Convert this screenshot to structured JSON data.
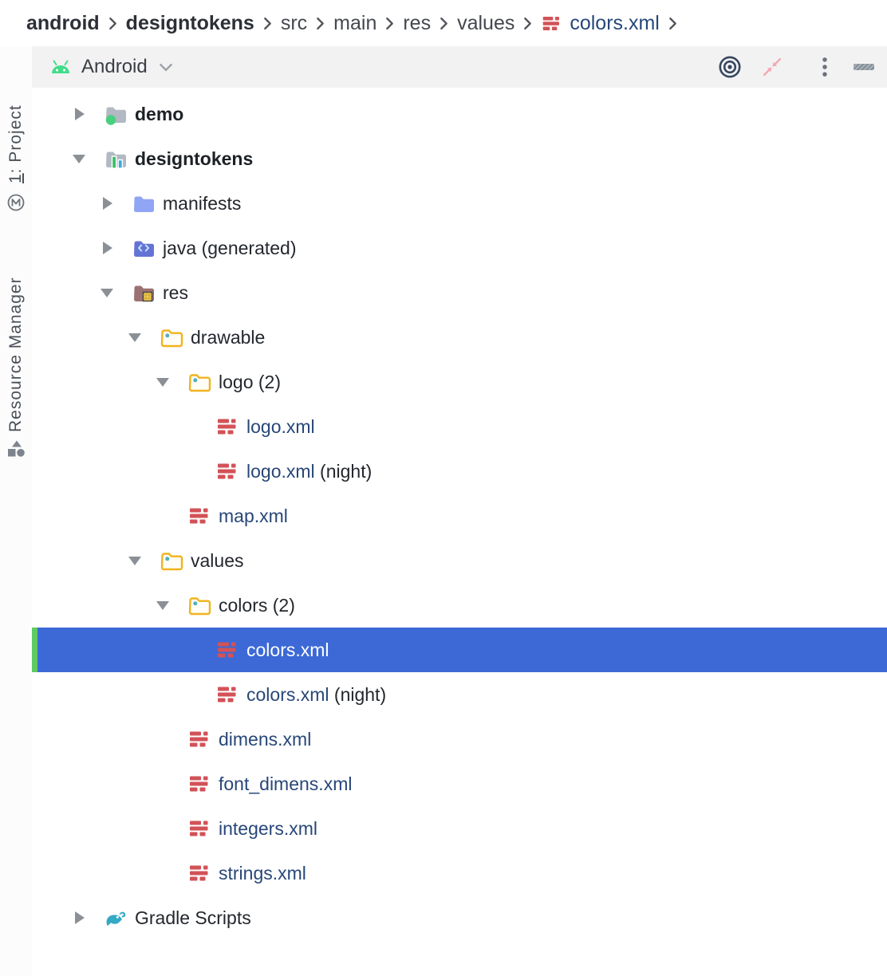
{
  "breadcrumb": {
    "items": [
      {
        "label": "android",
        "style": "bold"
      },
      {
        "label": "designtokens",
        "style": "bold"
      },
      {
        "label": "src",
        "style": "normal"
      },
      {
        "label": "main",
        "style": "normal"
      },
      {
        "label": "res",
        "style": "normal"
      },
      {
        "label": "values",
        "style": "normal"
      },
      {
        "label": "colors.xml",
        "style": "file",
        "icon": "xml-file"
      }
    ]
  },
  "left_stripe": {
    "project_button": {
      "mnemonic": "1",
      "label": ": Project"
    },
    "resource_manager_button": {
      "label": "Resource Manager"
    }
  },
  "toolbar": {
    "view_selector": {
      "label": "Android"
    },
    "actions": [
      {
        "name": "locate-file"
      },
      {
        "name": "collapse-all"
      },
      {
        "name": "more-options"
      },
      {
        "name": "hide-panel"
      }
    ]
  },
  "tree": {
    "items": [
      {
        "label": "demo",
        "level": 0,
        "arrow": "collapsed",
        "icon": "module-folder-dot",
        "bold": true
      },
      {
        "label": "designtokens",
        "level": 0,
        "arrow": "expanded",
        "icon": "module-folder-chart",
        "bold": true
      },
      {
        "label": "manifests",
        "level": 1,
        "arrow": "collapsed",
        "icon": "folder-manifests"
      },
      {
        "label": "java (generated)",
        "level": 1,
        "arrow": "collapsed",
        "icon": "folder-java"
      },
      {
        "label": "res",
        "level": 1,
        "arrow": "expanded",
        "icon": "folder-res"
      },
      {
        "label": "drawable",
        "level": 2,
        "arrow": "expanded",
        "icon": "folder-resource"
      },
      {
        "label": "logo (2)",
        "level": 3,
        "arrow": "expanded",
        "icon": "folder-resource"
      },
      {
        "label": "logo.xml",
        "level": 4,
        "icon": "xml-file",
        "file": true
      },
      {
        "label": "logo.xml",
        "suffix": " (night)",
        "level": 4,
        "icon": "xml-file",
        "file": true
      },
      {
        "label": "map.xml",
        "level": 3,
        "icon": "xml-file",
        "file": true
      },
      {
        "label": "values",
        "level": 2,
        "arrow": "expanded",
        "icon": "folder-resource"
      },
      {
        "label": "colors (2)",
        "level": 3,
        "arrow": "expanded",
        "icon": "folder-resource"
      },
      {
        "label": "colors.xml",
        "level": 4,
        "icon": "xml-file",
        "file": true,
        "selected": true
      },
      {
        "label": "colors.xml",
        "suffix": " (night)",
        "level": 4,
        "icon": "xml-file",
        "file": true
      },
      {
        "label": "dimens.xml",
        "level": 3,
        "icon": "xml-file",
        "file": true
      },
      {
        "label": "font_dimens.xml",
        "level": 3,
        "icon": "xml-file",
        "file": true
      },
      {
        "label": "integers.xml",
        "level": 3,
        "icon": "xml-file",
        "file": true
      },
      {
        "label": "strings.xml",
        "level": 3,
        "icon": "xml-file",
        "file": true
      },
      {
        "label": "Gradle Scripts",
        "level": 0,
        "arrow": "collapsed",
        "icon": "gradle"
      }
    ]
  },
  "colors": {
    "selection_bg": "#3c69d6",
    "selection_stripe": "#5ecb62",
    "file_link": "#274778",
    "xml_icon_red": "#d25257",
    "android_green": "#42dd8a",
    "toolbar_bg": "#f2f2f3"
  }
}
